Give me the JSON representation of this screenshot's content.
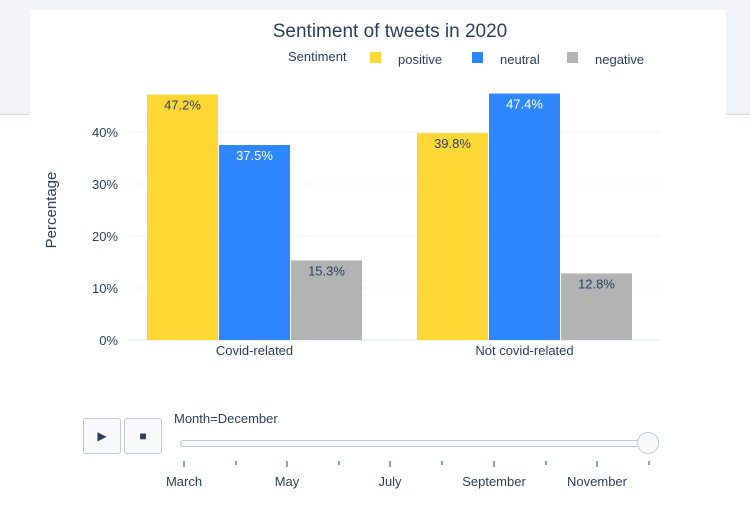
{
  "chart_data": {
    "type": "bar",
    "title": "Sentiment of tweets in 2020",
    "legend_title": "Sentiment",
    "legend_position": "top",
    "ylabel": "Percentage",
    "xlabel": "",
    "categories": [
      "Covid-related",
      "Not covid-related"
    ],
    "yticks": [
      "0%",
      "10%",
      "20%",
      "30%",
      "40%"
    ],
    "ylim": [
      0,
      50
    ],
    "grid": true,
    "series": [
      {
        "name": "positive",
        "color": "#fdd835",
        "values": [
          47.2,
          39.8
        ],
        "labels": [
          "47.2%",
          "39.8%"
        ]
      },
      {
        "name": "neutral",
        "color": "#2e86fb",
        "values": [
          37.5,
          47.4
        ],
        "labels": [
          "37.5%",
          "47.4%"
        ]
      },
      {
        "name": "negative",
        "color": "#b3b3b3",
        "values": [
          15.3,
          12.8
        ],
        "labels": [
          "15.3%",
          "12.8%"
        ]
      }
    ]
  },
  "controls": {
    "play_icon": "play-icon",
    "stop_icon": "stop-icon",
    "play_glyph": "▶",
    "stop_glyph": "■",
    "slider_label": "Month=December",
    "slider_value": "December",
    "slider_ticks": [
      "March",
      "May",
      "July",
      "September",
      "November"
    ]
  }
}
